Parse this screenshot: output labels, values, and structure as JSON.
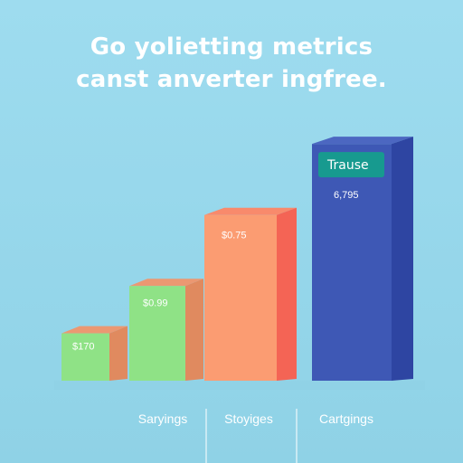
{
  "title_lines": [
    "Go yolietting metrics",
    "canst anverter ingfree."
  ],
  "colors": {
    "background": "#9edcef",
    "text": "#ffffff",
    "badge": "#179a8f"
  },
  "chart_data": {
    "type": "bar",
    "title": "Go yolietting metrics canst anverter ingfree.",
    "categories": [
      "",
      "Saryings",
      "Stoyiges",
      "Cartgings"
    ],
    "bar_labels": [
      "$170",
      "$0.99",
      "$0.75",
      "6,795"
    ],
    "values": [
      1,
      2,
      3.5,
      5
    ],
    "ylim": [
      0,
      5.5
    ],
    "grid": false,
    "badge": {
      "text": "Trause",
      "bar_index": 3
    },
    "bar_colors": [
      {
        "front": "#8fe286",
        "side": "#e08a5f",
        "top": "#eb9872"
      },
      {
        "front": "#8fe286",
        "side": "#e08a5f",
        "top": "#eb9872"
      },
      {
        "front": "#fb9c72",
        "side": "#f46455",
        "top": "#f88a6c"
      },
      {
        "front": "#3e58b5",
        "side": "#2e45a2",
        "top": "#4c67c1"
      }
    ]
  }
}
